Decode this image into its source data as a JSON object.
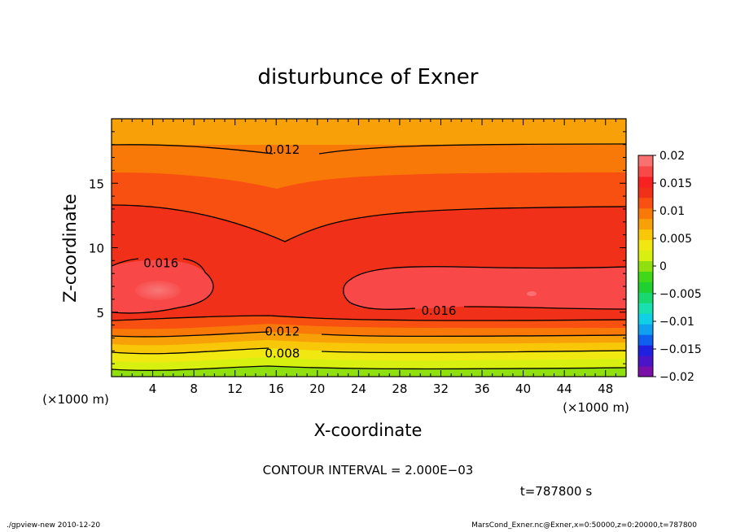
{
  "chart_data": {
    "type": "heatmap",
    "title": "disturbunce of Exner",
    "xlabel": "X-coordinate",
    "ylabel": "Z-coordinate",
    "x_unit": "(×1000 m)",
    "y_unit": "(×1000 m)",
    "xlim": [
      0,
      50
    ],
    "ylim": [
      0,
      20
    ],
    "x_ticks": [
      4,
      8,
      12,
      16,
      20,
      24,
      28,
      32,
      36,
      40,
      44,
      48
    ],
    "y_ticks": [
      5,
      10,
      15
    ],
    "colorbar": {
      "ticks": [
        "0.02",
        "0.015",
        "0.01",
        "0.005",
        "0",
        "−0.005",
        "−0.01",
        "−0.015",
        "−0.02"
      ],
      "levels": [
        -0.02,
        -0.018,
        -0.016,
        -0.014,
        -0.012,
        -0.01,
        -0.008,
        -0.006,
        -0.004,
        -0.002,
        0,
        0.002,
        0.004,
        0.006,
        0.008,
        0.01,
        0.012,
        0.014,
        0.016,
        0.018,
        0.02
      ],
      "colors": [
        "#7a10a8",
        "#4a14c8",
        "#2020e0",
        "#1060f0",
        "#10a0f0",
        "#10d0e8",
        "#18e0b0",
        "#18d870",
        "#20d030",
        "#40d818",
        "#90e010",
        "#d8f010",
        "#f0e810",
        "#f8c808",
        "#f8a008",
        "#f87808",
        "#f85010",
        "#f03018",
        "#f82020",
        "#f84848",
        "#f87070"
      ]
    },
    "contour_labels": [
      {
        "text": "0.012",
        "x": 16.6,
        "z": 17.6
      },
      {
        "text": "0.016",
        "x": 4.8,
        "z": 8.8
      },
      {
        "text": "0.016",
        "x": 31.8,
        "z": 5.1
      },
      {
        "text": "0.012",
        "x": 16.6,
        "z": 3.5
      },
      {
        "text": "0.008",
        "x": 16.6,
        "z": 1.8
      }
    ],
    "contour_interval": "CONTOUR INTERVAL = 2.000E−03",
    "time": "t=787800 s"
  },
  "footer": {
    "left": "./gpview-new   2010-12-20",
    "right": "MarsCond_Exner.nc@Exner,x=0:50000,z=0:20000,t=787800"
  }
}
